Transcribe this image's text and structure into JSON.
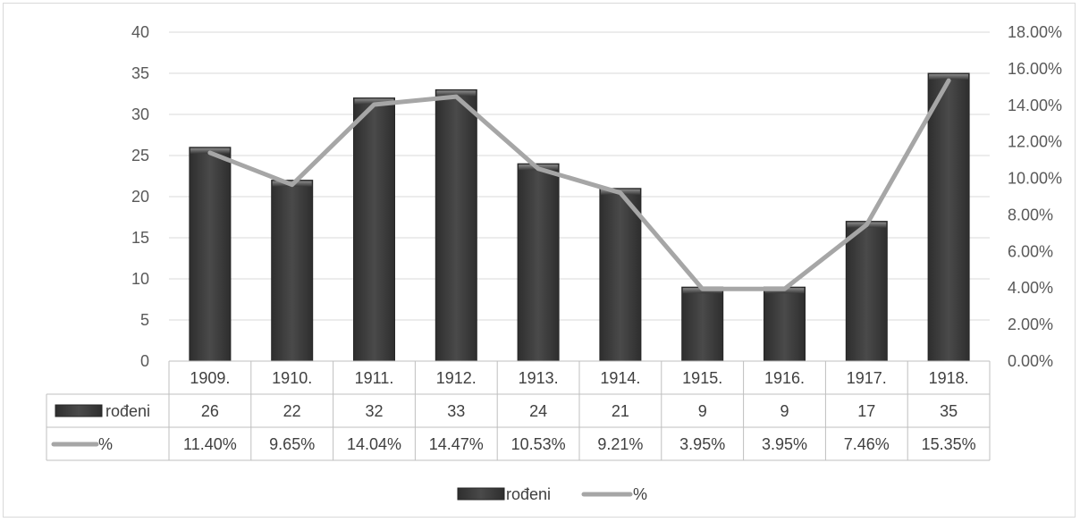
{
  "chart_data": {
    "type": "bar",
    "categories": [
      "1909.",
      "1910.",
      "1911.",
      "1912.",
      "1913.",
      "1914.",
      "1915.",
      "1916.",
      "1917.",
      "1918."
    ],
    "series": [
      {
        "name": "rođeni",
        "kind": "bar",
        "axis": "left",
        "color": "#404040",
        "values": [
          26,
          22,
          32,
          33,
          24,
          21,
          9,
          9,
          17,
          35
        ],
        "labels": [
          "26",
          "22",
          "32",
          "33",
          "24",
          "21",
          "9",
          "9",
          "17",
          "35"
        ]
      },
      {
        "name": "%",
        "kind": "line",
        "axis": "right",
        "color": "#a6a6a6",
        "values": [
          11.4,
          9.65,
          14.04,
          14.47,
          10.53,
          9.21,
          3.95,
          3.95,
          7.46,
          15.35
        ],
        "labels": [
          "11.40%",
          "9.65%",
          "14.04%",
          "14.47%",
          "10.53%",
          "9.21%",
          "3.95%",
          "3.95%",
          "7.46%",
          "15.35%"
        ]
      }
    ],
    "y_left": {
      "lim": [
        0,
        40
      ],
      "ticks": [
        0,
        5,
        10,
        15,
        20,
        25,
        30,
        35,
        40
      ],
      "tick_labels": [
        "0",
        "5",
        "10",
        "15",
        "20",
        "25",
        "30",
        "35",
        "40"
      ]
    },
    "y_right": {
      "lim": [
        0,
        18
      ],
      "ticks": [
        0,
        2,
        4,
        6,
        8,
        10,
        12,
        14,
        16,
        18
      ],
      "tick_labels": [
        "0.00%",
        "2.00%",
        "4.00%",
        "6.00%",
        "8.00%",
        "10.00%",
        "12.00%",
        "14.00%",
        "16.00%",
        "18.00%"
      ]
    },
    "grid": true,
    "data_table": true,
    "legend": {
      "position": "bottom",
      "entries": [
        "rođeni",
        "%"
      ]
    },
    "title": "",
    "xlabel": "",
    "ylabel": ""
  }
}
